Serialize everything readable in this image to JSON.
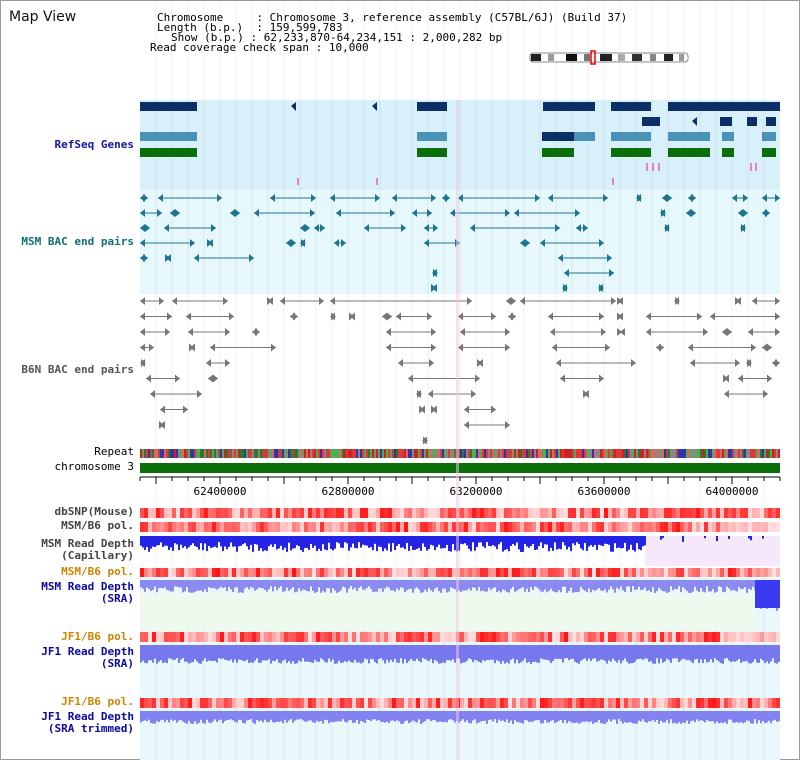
{
  "title": "Map View",
  "header": {
    "chromosome_label": "Chromosome",
    "chromosome_value": "Chromosome 3, reference assembly (C57BL/6J) (Build 37)",
    "length_label": "Length (b.p.)",
    "length_value": "159,599,783",
    "show_label": "Show (b.p.)",
    "show_value": "62,233,870-64,234,151 : 2,000,282 bp",
    "coverage_label": "Read coverage check span",
    "coverage_value": "10,000"
  },
  "tracks": {
    "refseq": "RefSeq Genes",
    "msm_bac": "MSM BAC end pairs",
    "b6n_bac": "B6N BAC end pairs",
    "repeat": "Repeat",
    "chromosome": "chromosome 3",
    "dbsnp": "dbSNP(Mouse)",
    "msm_b6_pol": "MSM/B6 pol.",
    "msm_depth_cap_1": "MSM Read Depth",
    "msm_depth_cap_2": "(Capillary)",
    "msm_b6_pol_2": "MSM/B6 pol.",
    "msm_depth_sra_1": "MSM Read Depth",
    "msm_depth_sra_2": "(SRA)",
    "jf1_b6_pol": "JF1/B6 pol.",
    "jf1_depth_sra_1": "JF1 Read Depth",
    "jf1_depth_sra_2": "(SRA)",
    "jf1_b6_pol_2": "JF1/B6 pol.",
    "jf1_depth_trim_1": "JF1 Read Depth",
    "jf1_depth_trim_2": "(SRA trimmed)"
  },
  "axis_ticks": [
    "62400000",
    "62800000",
    "63200000",
    "63600000",
    "64000000"
  ],
  "colors": {
    "refseq_bg": "#d8f0fa",
    "bac_bg": "#e6f8fb",
    "navy": "#0b2f66",
    "steel": "#4a92b8",
    "green": "#0a6e0a",
    "teal": "#1d7590",
    "gray": "#777777",
    "chromosome": "#0a6e0a",
    "depth_blue": "#2424e6",
    "depth_violet": "#7878ee"
  }
}
